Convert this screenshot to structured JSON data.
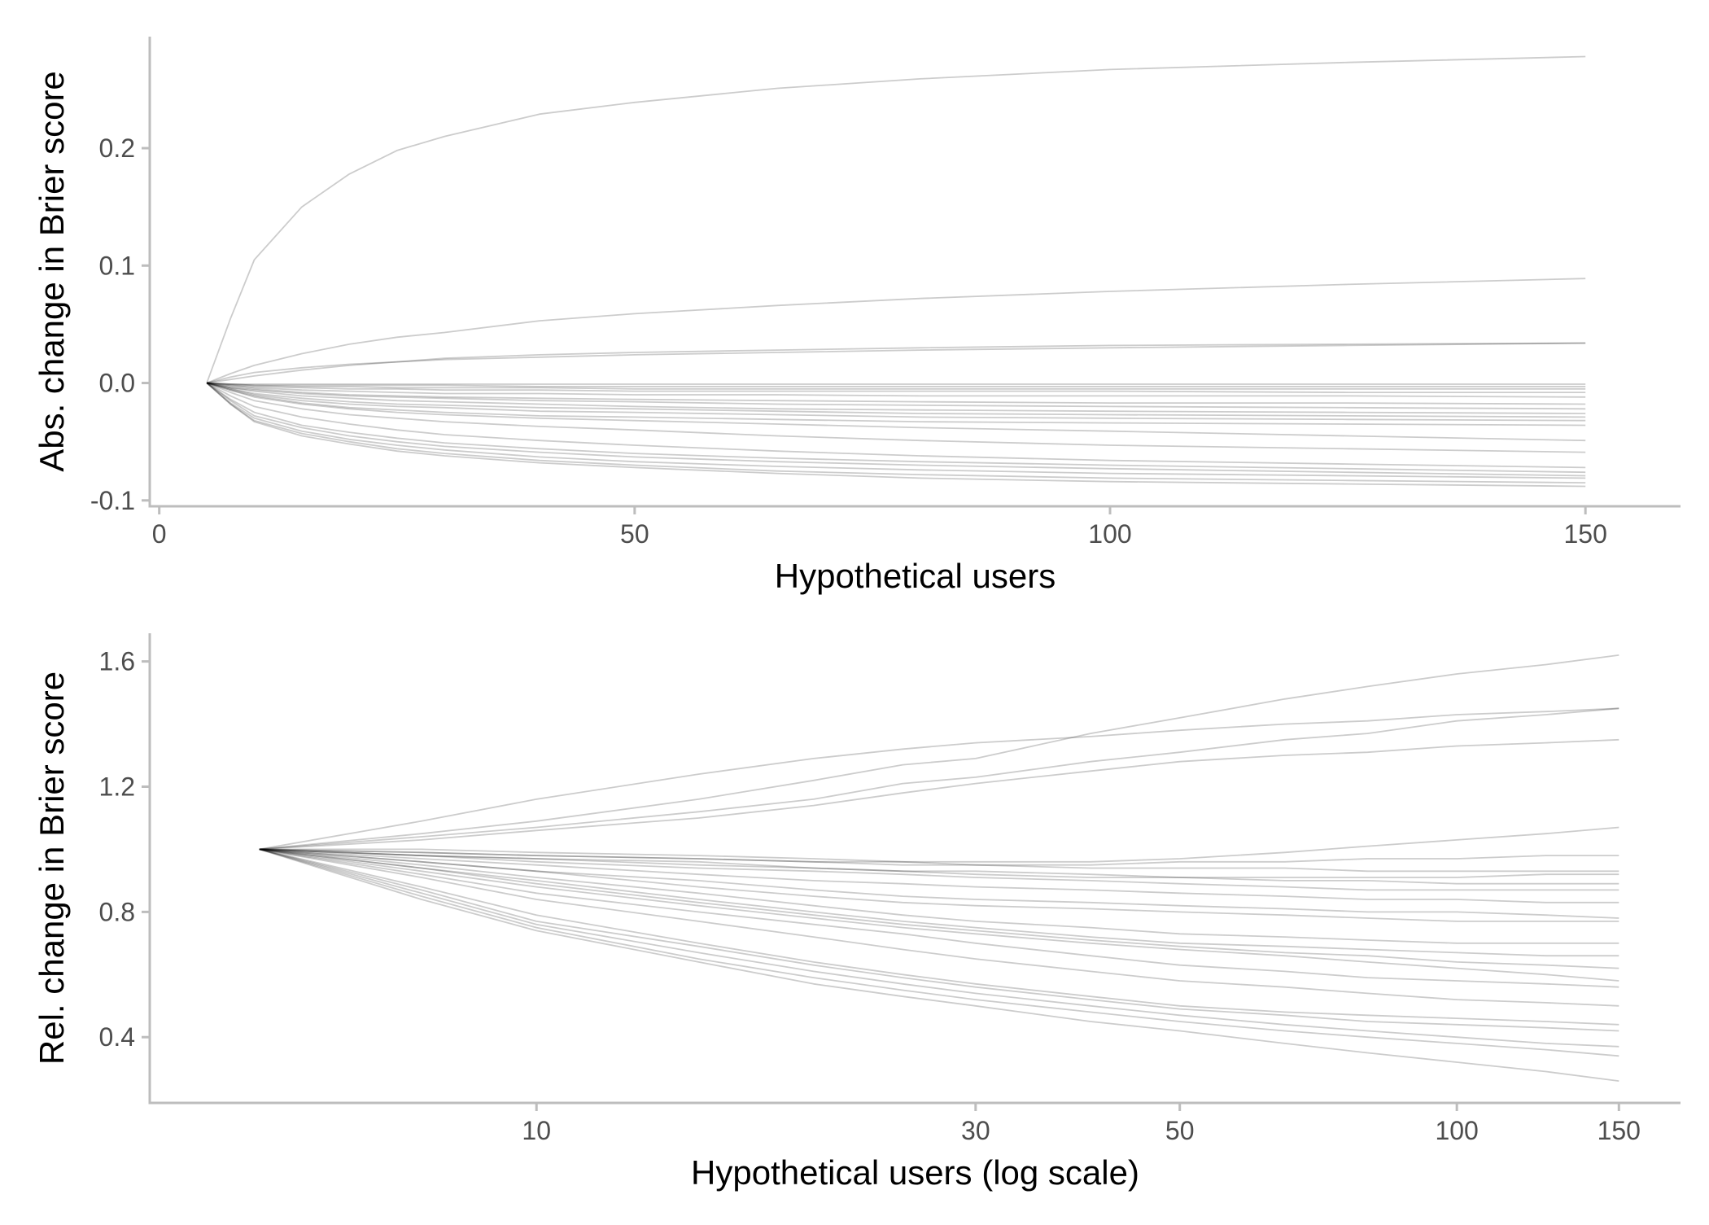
{
  "chart_data": [
    {
      "type": "line",
      "xlabel": "Hypothetical users",
      "ylabel": "Abs. change in Brier score",
      "x_scale": "linear",
      "xlim": [
        -1,
        160
      ],
      "ylim": [
        -0.105,
        0.295
      ],
      "xticks": [
        0,
        50,
        100,
        150
      ],
      "xtick_labels": [
        "0",
        "50",
        "100",
        "150"
      ],
      "yticks": [
        -0.1,
        0.0,
        0.1,
        0.2
      ],
      "ytick_labels": [
        "-0.1",
        "0.0",
        "0.1",
        "0.2"
      ],
      "grid": false,
      "legend": "none",
      "line_color": "#000000",
      "x": [
        5,
        7.5,
        10,
        15,
        20,
        25,
        30,
        40,
        50,
        65,
        80,
        100,
        125,
        150
      ],
      "series": [
        {
          "values": [
            0,
            0.055,
            0.105,
            0.15,
            0.178,
            0.198,
            0.21,
            0.229,
            0.239,
            0.251,
            0.259,
            0.267,
            0.273,
            0.278
          ]
        },
        {
          "values": [
            0,
            0.008,
            0.015,
            0.025,
            0.033,
            0.039,
            0.043,
            0.053,
            0.059,
            0.066,
            0.072,
            0.078,
            0.084,
            0.089
          ]
        },
        {
          "values": [
            0,
            0.005,
            0.009,
            0.013,
            0.016,
            0.018,
            0.02,
            0.022,
            0.024,
            0.026,
            0.028,
            0.03,
            0.032,
            0.034
          ]
        },
        {
          "values": [
            0,
            0.003,
            0.006,
            0.011,
            0.015,
            0.018,
            0.021,
            0.024,
            0.026,
            0.028,
            0.03,
            0.032,
            0.033,
            0.034
          ]
        },
        {
          "values": [
            0,
            -0.001,
            -0.001,
            -0.001,
            -0.001,
            -0.001,
            -0.001,
            -0.001,
            -0.001,
            -0.001,
            -0.001,
            -0.001,
            -0.001,
            -0.001
          ]
        },
        {
          "values": [
            0,
            -0.001,
            -0.002,
            -0.002,
            -0.002,
            -0.002,
            -0.002,
            -0.003,
            -0.003,
            -0.003,
            -0.003,
            -0.003,
            -0.003,
            -0.003
          ]
        },
        {
          "values": [
            0,
            -0.001,
            -0.002,
            -0.003,
            -0.003,
            -0.004,
            -0.004,
            -0.004,
            -0.005,
            -0.005,
            -0.005,
            -0.005,
            -0.005,
            -0.005
          ]
        },
        {
          "values": [
            0,
            -0.002,
            -0.003,
            -0.004,
            -0.005,
            -0.005,
            -0.006,
            -0.006,
            -0.007,
            -0.007,
            -0.007,
            -0.007,
            -0.008,
            -0.008
          ]
        },
        {
          "values": [
            0,
            -0.002,
            -0.004,
            -0.006,
            -0.007,
            -0.008,
            -0.009,
            -0.009,
            -0.01,
            -0.01,
            -0.011,
            -0.011,
            -0.011,
            -0.012
          ]
        },
        {
          "values": [
            0,
            -0.003,
            -0.005,
            -0.008,
            -0.01,
            -0.011,
            -0.012,
            -0.013,
            -0.014,
            -0.015,
            -0.016,
            -0.017,
            -0.017,
            -0.018
          ]
        },
        {
          "values": [
            0,
            -0.004,
            -0.006,
            -0.009,
            -0.011,
            -0.012,
            -0.013,
            -0.015,
            -0.016,
            -0.018,
            -0.019,
            -0.02,
            -0.021,
            -0.022
          ]
        },
        {
          "values": [
            0,
            -0.004,
            -0.007,
            -0.011,
            -0.013,
            -0.015,
            -0.016,
            -0.018,
            -0.02,
            -0.022,
            -0.023,
            -0.024,
            -0.025,
            -0.026
          ]
        },
        {
          "values": [
            0,
            -0.005,
            -0.009,
            -0.013,
            -0.016,
            -0.018,
            -0.019,
            -0.021,
            -0.022,
            -0.024,
            -0.026,
            -0.027,
            -0.028,
            -0.029
          ]
        },
        {
          "values": [
            0,
            -0.005,
            -0.01,
            -0.015,
            -0.018,
            -0.02,
            -0.021,
            -0.024,
            -0.025,
            -0.027,
            -0.029,
            -0.03,
            -0.031,
            -0.032
          ]
        },
        {
          "values": [
            0,
            -0.006,
            -0.011,
            -0.017,
            -0.021,
            -0.023,
            -0.025,
            -0.028,
            -0.029,
            -0.031,
            -0.033,
            -0.034,
            -0.035,
            -0.036
          ]
        },
        {
          "values": [
            0,
            -0.006,
            -0.012,
            -0.018,
            -0.022,
            -0.025,
            -0.027,
            -0.03,
            -0.032,
            -0.035,
            -0.038,
            -0.041,
            -0.045,
            -0.049
          ]
        },
        {
          "values": [
            0,
            -0.008,
            -0.015,
            -0.022,
            -0.027,
            -0.03,
            -0.033,
            -0.037,
            -0.04,
            -0.045,
            -0.049,
            -0.053,
            -0.056,
            -0.059
          ]
        },
        {
          "values": [
            0,
            -0.011,
            -0.02,
            -0.029,
            -0.035,
            -0.04,
            -0.044,
            -0.049,
            -0.053,
            -0.058,
            -0.062,
            -0.066,
            -0.069,
            -0.072
          ]
        },
        {
          "values": [
            0,
            -0.014,
            -0.025,
            -0.036,
            -0.042,
            -0.047,
            -0.051,
            -0.056,
            -0.06,
            -0.064,
            -0.067,
            -0.07,
            -0.073,
            -0.076
          ]
        },
        {
          "values": [
            0,
            -0.015,
            -0.028,
            -0.038,
            -0.045,
            -0.05,
            -0.054,
            -0.059,
            -0.063,
            -0.067,
            -0.07,
            -0.073,
            -0.076,
            -0.079
          ]
        },
        {
          "values": [
            0,
            -0.017,
            -0.03,
            -0.041,
            -0.048,
            -0.053,
            -0.057,
            -0.063,
            -0.067,
            -0.071,
            -0.074,
            -0.077,
            -0.079,
            -0.081
          ]
        },
        {
          "values": [
            0,
            -0.018,
            -0.032,
            -0.043,
            -0.05,
            -0.056,
            -0.06,
            -0.066,
            -0.07,
            -0.075,
            -0.078,
            -0.081,
            -0.083,
            -0.085
          ]
        },
        {
          "values": [
            0,
            -0.018,
            -0.033,
            -0.045,
            -0.052,
            -0.058,
            -0.062,
            -0.068,
            -0.072,
            -0.077,
            -0.081,
            -0.084,
            -0.086,
            -0.088
          ]
        }
      ]
    },
    {
      "type": "line",
      "xlabel": "Hypothetical users (log scale)",
      "ylabel": "Rel. change in Brier score",
      "x_scale": "log",
      "xlim": [
        3.8,
        175
      ],
      "ylim": [
        0.19,
        1.69
      ],
      "xticks": [
        10,
        30,
        50,
        100,
        150
      ],
      "xtick_labels": [
        "10",
        "30",
        "50",
        "100",
        "150"
      ],
      "yticks": [
        0.4,
        0.8,
        1.2,
        1.6
      ],
      "ytick_labels": [
        "0.4",
        "0.8",
        "1.2",
        "1.6"
      ],
      "grid": false,
      "legend": "none",
      "line_color": "#000000",
      "x": [
        5,
        7.5,
        10,
        15,
        20,
        25,
        30,
        40,
        50,
        65,
        80,
        100,
        125,
        150
      ],
      "series": [
        {
          "values": [
            1,
            1.09,
            1.16,
            1.24,
            1.29,
            1.32,
            1.34,
            1.36,
            1.38,
            1.4,
            1.41,
            1.43,
            1.44,
            1.45
          ]
        },
        {
          "values": [
            1,
            1.05,
            1.09,
            1.16,
            1.22,
            1.27,
            1.29,
            1.37,
            1.42,
            1.48,
            1.52,
            1.56,
            1.59,
            1.62
          ]
        },
        {
          "values": [
            1,
            1.04,
            1.07,
            1.12,
            1.16,
            1.21,
            1.23,
            1.28,
            1.31,
            1.35,
            1.37,
            1.41,
            1.43,
            1.45
          ]
        },
        {
          "values": [
            1,
            1.03,
            1.06,
            1.1,
            1.14,
            1.18,
            1.21,
            1.25,
            1.28,
            1.3,
            1.31,
            1.33,
            1.34,
            1.35
          ]
        },
        {
          "values": [
            1,
            1,
            0.99,
            0.98,
            0.97,
            0.96,
            0.96,
            0.96,
            0.97,
            0.99,
            1.01,
            1.03,
            1.05,
            1.07
          ]
        },
        {
          "values": [
            1,
            0.99,
            0.98,
            0.97,
            0.96,
            0.96,
            0.95,
            0.95,
            0.96,
            0.96,
            0.97,
            0.97,
            0.98,
            0.98
          ]
        },
        {
          "values": [
            1,
            0.99,
            0.98,
            0.97,
            0.96,
            0.95,
            0.95,
            0.94,
            0.94,
            0.94,
            0.93,
            0.93,
            0.93,
            0.93
          ]
        },
        {
          "values": [
            1,
            0.98,
            0.97,
            0.96,
            0.94,
            0.93,
            0.92,
            0.91,
            0.91,
            0.91,
            0.91,
            0.91,
            0.92,
            0.92
          ]
        },
        {
          "values": [
            1,
            0.98,
            0.97,
            0.95,
            0.94,
            0.93,
            0.93,
            0.92,
            0.91,
            0.9,
            0.9,
            0.89,
            0.89,
            0.89
          ]
        },
        {
          "values": [
            1,
            0.98,
            0.96,
            0.94,
            0.93,
            0.92,
            0.91,
            0.9,
            0.89,
            0.88,
            0.87,
            0.87,
            0.87,
            0.87
          ]
        },
        {
          "values": [
            1,
            0.97,
            0.95,
            0.92,
            0.9,
            0.89,
            0.88,
            0.87,
            0.86,
            0.85,
            0.84,
            0.84,
            0.83,
            0.83
          ]
        },
        {
          "values": [
            1,
            0.96,
            0.93,
            0.9,
            0.87,
            0.85,
            0.84,
            0.83,
            0.82,
            0.81,
            0.8,
            0.8,
            0.79,
            0.78
          ]
        },
        {
          "values": [
            1,
            0.96,
            0.93,
            0.88,
            0.85,
            0.83,
            0.82,
            0.81,
            0.8,
            0.79,
            0.78,
            0.77,
            0.77,
            0.77
          ]
        },
        {
          "values": [
            1,
            0.95,
            0.91,
            0.86,
            0.82,
            0.79,
            0.77,
            0.75,
            0.73,
            0.72,
            0.71,
            0.7,
            0.7,
            0.7
          ]
        },
        {
          "values": [
            1,
            0.94,
            0.9,
            0.84,
            0.8,
            0.77,
            0.75,
            0.72,
            0.7,
            0.69,
            0.68,
            0.67,
            0.66,
            0.66
          ]
        },
        {
          "values": [
            1,
            0.94,
            0.89,
            0.83,
            0.79,
            0.76,
            0.74,
            0.71,
            0.69,
            0.67,
            0.66,
            0.64,
            0.63,
            0.62
          ]
        },
        {
          "values": [
            1,
            0.93,
            0.88,
            0.82,
            0.78,
            0.75,
            0.73,
            0.7,
            0.68,
            0.66,
            0.64,
            0.62,
            0.6,
            0.58
          ]
        },
        {
          "values": [
            1,
            0.92,
            0.86,
            0.8,
            0.76,
            0.73,
            0.7,
            0.66,
            0.63,
            0.61,
            0.59,
            0.58,
            0.57,
            0.56
          ]
        },
        {
          "values": [
            1,
            0.91,
            0.84,
            0.77,
            0.72,
            0.68,
            0.65,
            0.61,
            0.58,
            0.56,
            0.54,
            0.52,
            0.51,
            0.5
          ]
        },
        {
          "values": [
            1,
            0.88,
            0.79,
            0.7,
            0.64,
            0.6,
            0.57,
            0.53,
            0.5,
            0.48,
            0.47,
            0.46,
            0.45,
            0.44
          ]
        },
        {
          "values": [
            1,
            0.87,
            0.77,
            0.69,
            0.63,
            0.59,
            0.56,
            0.52,
            0.49,
            0.47,
            0.45,
            0.44,
            0.43,
            0.42
          ]
        },
        {
          "values": [
            1,
            0.86,
            0.76,
            0.67,
            0.61,
            0.57,
            0.54,
            0.5,
            0.47,
            0.44,
            0.42,
            0.4,
            0.38,
            0.37
          ]
        },
        {
          "values": [
            1,
            0.85,
            0.75,
            0.65,
            0.59,
            0.55,
            0.52,
            0.48,
            0.45,
            0.42,
            0.4,
            0.38,
            0.36,
            0.34
          ]
        },
        {
          "values": [
            1,
            0.84,
            0.74,
            0.64,
            0.57,
            0.53,
            0.5,
            0.45,
            0.42,
            0.38,
            0.35,
            0.32,
            0.29,
            0.26
          ]
        }
      ]
    }
  ]
}
